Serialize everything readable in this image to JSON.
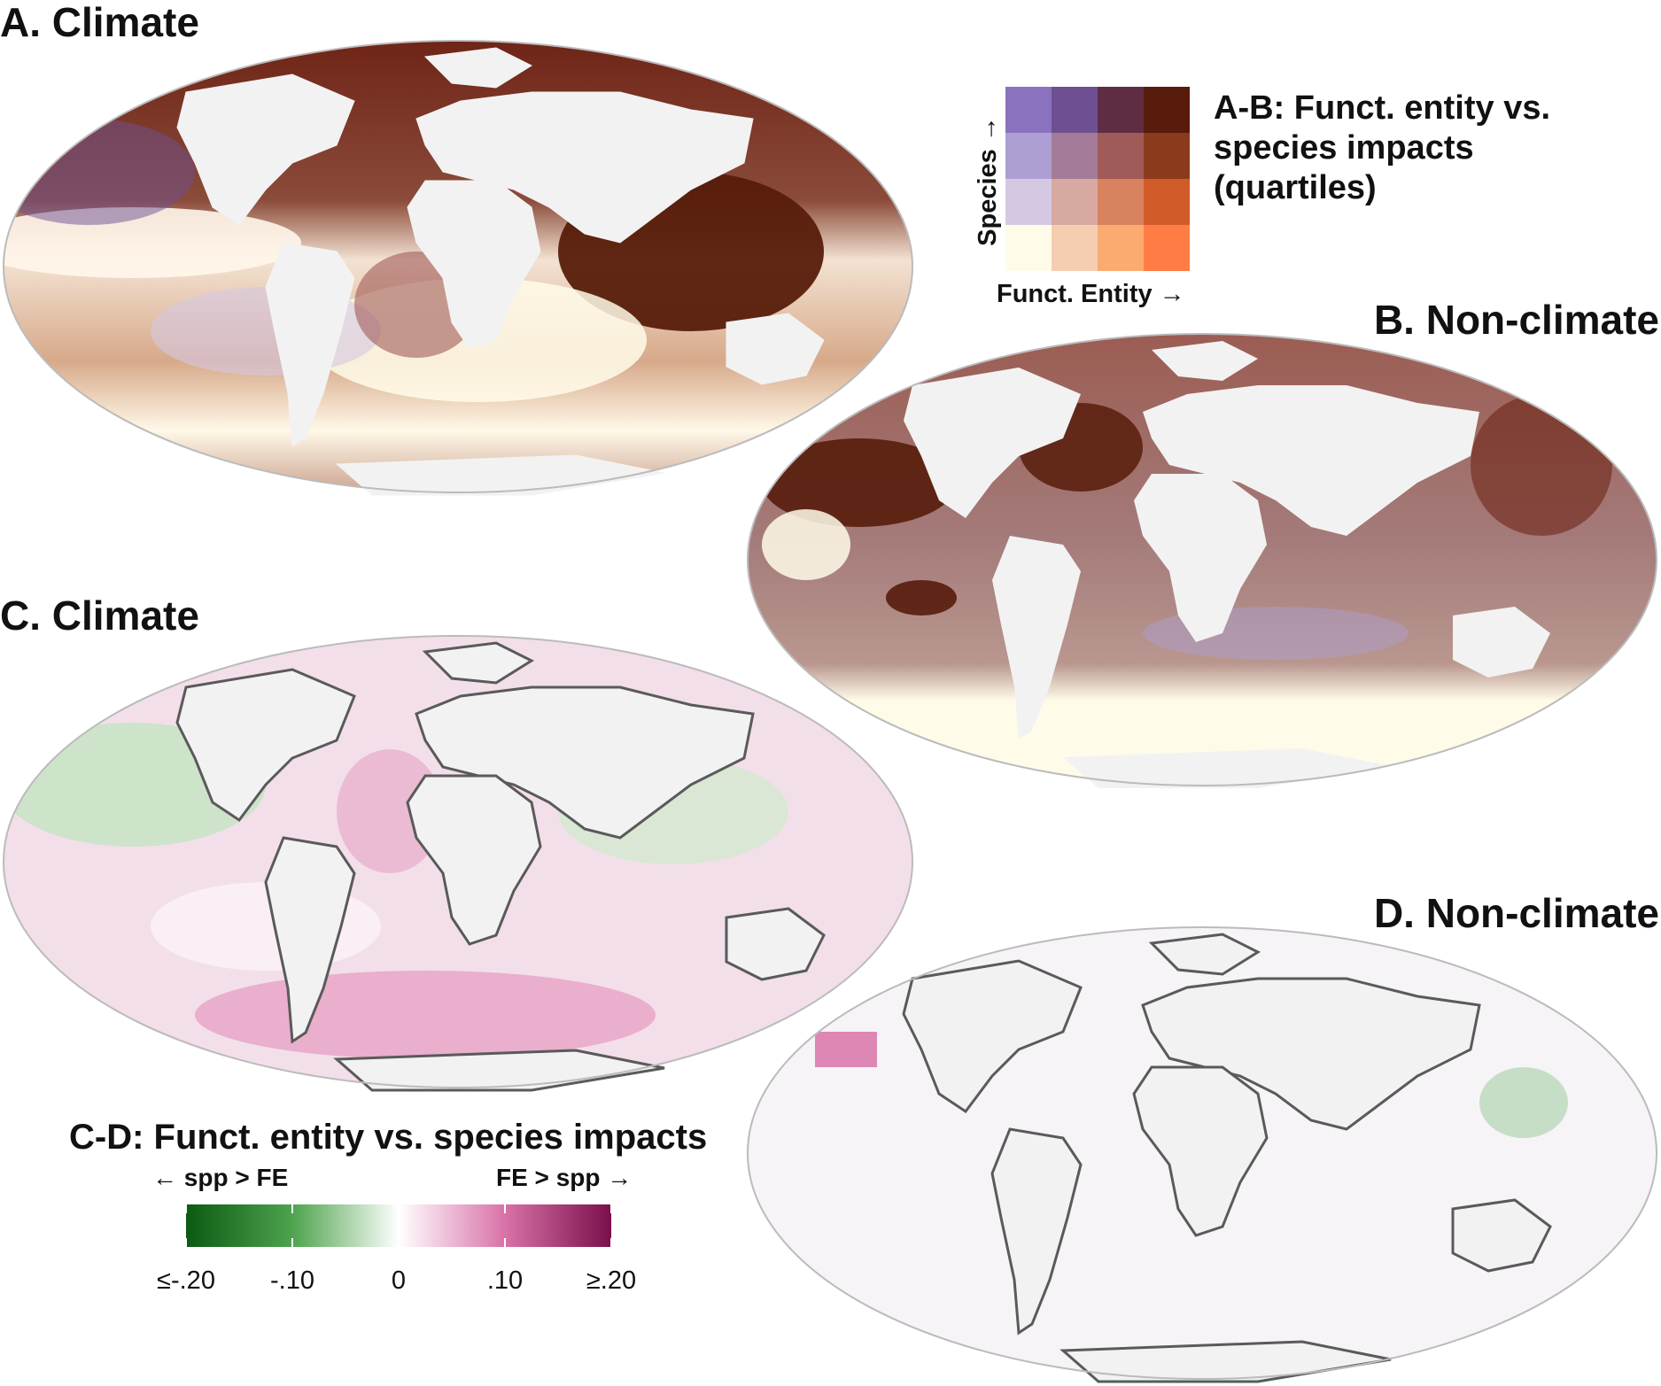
{
  "panels": {
    "a": {
      "label": "A. Climate"
    },
    "b": {
      "label": "B. Non-climate"
    },
    "c": {
      "label": "C. Climate"
    },
    "d": {
      "label": "D. Non-climate"
    }
  },
  "bivariate_legend": {
    "title_lines": [
      "A-B: Funct. entity vs.",
      "species impacts",
      "(quartiles)"
    ],
    "y_axis_label": "Species →",
    "x_axis_label": "Funct. Entity →",
    "colors_top_to_bottom": [
      [
        "#8a72bf",
        "#6e4f91",
        "#5e2d44",
        "#571c0b"
      ],
      [
        "#ad9fd3",
        "#a47b99",
        "#a05a57",
        "#8c3a1c"
      ],
      [
        "#d5c8e2",
        "#d8a9a0",
        "#d98260",
        "#d25b2a"
      ],
      [
        "#fffbe9",
        "#f5cdb1",
        "#fbaa70",
        "#ff7d45"
      ]
    ]
  },
  "diverging_legend": {
    "title": "C-D: Funct. entity vs. species impacts",
    "left_label": "← spp > FE",
    "right_label": "FE > spp →",
    "ticks": [
      "≤-.20",
      "-.10",
      "0",
      ".10",
      "≥.20"
    ],
    "tick_values": [
      -0.2,
      -0.1,
      0,
      0.1,
      0.2
    ],
    "colors": [
      "#0b5a12",
      "#4ea34e",
      "#ffffff",
      "#d972a8",
      "#7a0f4c"
    ]
  },
  "colors": {
    "land": "#f2f2f2",
    "coast_outline": "#5a5a5a",
    "ocean_outline": "#bbbbbb",
    "dark_brown": "#571c0b",
    "pink": "#e6a3c6",
    "green": "#7cbf7a"
  }
}
